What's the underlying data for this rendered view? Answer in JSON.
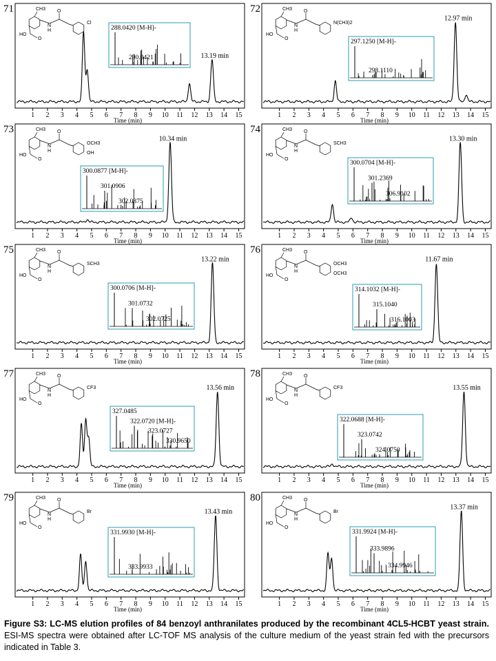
{
  "axis": {
    "xlim": [
      -0.2,
      15.4
    ],
    "xticks": [
      1,
      2,
      3,
      4,
      5,
      6,
      7,
      8,
      9,
      10,
      11,
      12,
      13,
      14,
      15
    ],
    "xlabel": "Time (min)"
  },
  "structure_labels": {
    "methyl": "CH3",
    "n": "N",
    "h": "H",
    "o": "O",
    "ho": "HO"
  },
  "panels": [
    {
      "id": "71",
      "retention": {
        "value": 13.19,
        "label": "13.19 min"
      },
      "height": 0.45,
      "peaks": [
        {
          "x": 4.45,
          "h": 0.75
        },
        {
          "x": 4.7,
          "h": 0.35
        },
        {
          "x": 11.65,
          "h": 0.2
        }
      ],
      "substituents": [
        "Cl"
      ],
      "inset": [
        "288.0420 [M-H]-",
        "290.0421"
      ]
    },
    {
      "id": "72",
      "retention": {
        "value": 12.97,
        "label": "12.97 min"
      },
      "height": 0.85,
      "peaks": [
        {
          "x": 4.8,
          "h": 0.22
        },
        {
          "x": 13.7,
          "h": 0.08
        }
      ],
      "substituents": [
        "N(CH3)2"
      ],
      "inset": [
        "297.1250 [M-H]-",
        "298.1110"
      ]
    },
    {
      "id": "73",
      "retention": {
        "value": 10.34,
        "label": "10.34 min"
      },
      "height": 0.85,
      "peaks": [
        {
          "x": 4.7,
          "h": 0.03
        }
      ],
      "substituents": [
        "OCH3",
        "OH"
      ],
      "inset": [
        "300.0877 [M-H]-",
        "301.0906",
        "302.0875"
      ]
    },
    {
      "id": "74",
      "retention": {
        "value": 13.3,
        "label": "13.30 min"
      },
      "height": 0.85,
      "peaks": [
        {
          "x": 4.6,
          "h": 0.2
        },
        {
          "x": 5.9,
          "h": 0.05
        }
      ],
      "substituents": [
        "SCH3"
      ],
      "inset": [
        "300.0704 [M-H]-",
        "301.2369",
        "306.9102"
      ]
    },
    {
      "id": "75",
      "retention": {
        "value": 13.22,
        "label": "13.22 min"
      },
      "height": 0.85,
      "peaks": [],
      "substituents": [
        "SCH3"
      ],
      "inset": [
        "300.0706 [M-H]-",
        "301.0732",
        "302.0725"
      ]
    },
    {
      "id": "76",
      "retention": {
        "value": 11.67,
        "label": "11.67 min"
      },
      "height": 0.85,
      "peaks": [],
      "substituents": [
        "OCH3",
        "OCH3"
      ],
      "inset": [
        "314.1032 [M-H]-",
        "315.1040",
        "316.1003"
      ]
    },
    {
      "id": "77",
      "retention": {
        "value": 13.56,
        "label": "13.56 min"
      },
      "height": 0.8,
      "peaks": [
        {
          "x": 4.3,
          "h": 0.45
        },
        {
          "x": 4.6,
          "h": 0.5
        },
        {
          "x": 4.8,
          "h": 0.3
        }
      ],
      "substituents": [
        "CF3"
      ],
      "inset": [
        "327.0485",
        "322.0720 [M-H]-",
        "323.0727",
        "330.9650"
      ]
    },
    {
      "id": "78",
      "retention": {
        "value": 13.55,
        "label": "13.55 min"
      },
      "height": 0.8,
      "peaks": [
        {
          "x": 4.6,
          "h": 0.03
        }
      ],
      "substituents": [
        "CF3"
      ],
      "inset": [
        "322.0688 [M-H]-",
        "323.0742",
        "324.0750"
      ]
    },
    {
      "id": "79",
      "retention": {
        "value": 13.43,
        "label": "13.43 min"
      },
      "height": 0.8,
      "peaks": [
        {
          "x": 4.25,
          "h": 0.38
        },
        {
          "x": 4.6,
          "h": 0.32
        }
      ],
      "substituents": [
        "Br"
      ],
      "inset": [
        "331.9930 [M-H]-",
        "333.9933"
      ]
    },
    {
      "id": "80",
      "retention": {
        "value": 13.37,
        "label": "13.37 min"
      },
      "height": 0.85,
      "peaks": [
        {
          "x": 4.3,
          "h": 0.4
        },
        {
          "x": 4.55,
          "h": 0.35
        }
      ],
      "substituents": [
        "Br"
      ],
      "inset": [
        "331.9924 [M-H]-",
        "333.9896",
        "334.9946"
      ]
    }
  ],
  "caption": {
    "bold": "Figure S3: LC-MS elution profiles of 84 benzoyl anthranilates produced by the recombinant 4CL5-HCBT yeast strain.",
    "text": "ESI-MS spectra were obtained after LC-TOF MS analysis of the culture medium of the yeast strain fed with the precursors indicated in Table 3."
  }
}
